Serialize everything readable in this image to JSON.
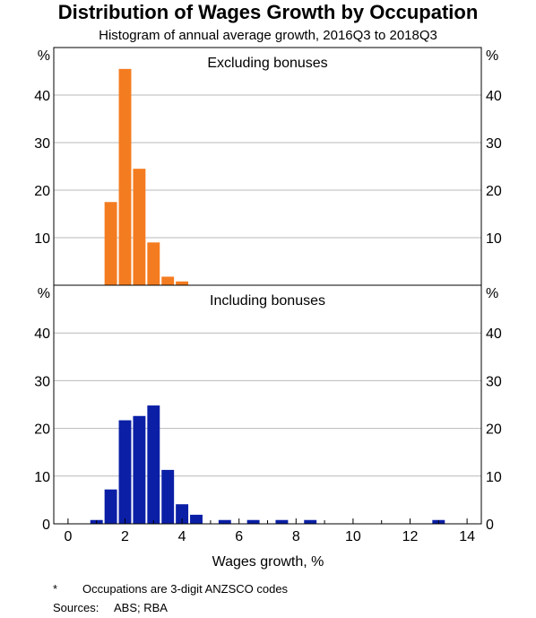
{
  "title": "Distribution of Wages Growth by Occupation",
  "subtitle": "Histogram of annual average growth, 2016Q3 to 2018Q3",
  "chart_data": {
    "type": "bar",
    "title": "Distribution of Wages Growth by Occupation",
    "subtitle": "Histogram of annual average growth, 2016Q3 to 2018Q3",
    "xlabel": "Wages growth, %",
    "xlim": [
      -0.5,
      14.5
    ],
    "x_ticks": [
      "0",
      "2",
      "4",
      "6",
      "8",
      "10",
      "12",
      "14"
    ],
    "x_tick_values": [
      0,
      2,
      4,
      6,
      8,
      10,
      12,
      14
    ],
    "bin_width": 0.5,
    "panels": [
      {
        "name": "Excluding bonuses",
        "color": "#f47c20",
        "unit_left": "%",
        "unit_right": "%",
        "ylim": [
          0,
          50
        ],
        "y_ticks": [
          "10",
          "20",
          "30",
          "40"
        ],
        "y_tick_values": [
          10,
          20,
          30,
          40
        ],
        "x": [
          1.5,
          2.0,
          2.5,
          3.0,
          3.5,
          4.0
        ],
        "values": [
          17.5,
          45.5,
          24.5,
          9.0,
          1.8,
          0.8
        ]
      },
      {
        "name": "Including bonuses",
        "color": "#0b1fa6",
        "unit_left": "%",
        "unit_right": "%",
        "ylim": [
          0,
          50
        ],
        "y_ticks": [
          "0",
          "10",
          "20",
          "30",
          "40"
        ],
        "y_tick_values": [
          0,
          10,
          20,
          30,
          40
        ],
        "x": [
          1.0,
          1.5,
          2.0,
          2.5,
          3.0,
          3.5,
          4.0,
          4.5,
          5.5,
          6.5,
          7.5,
          8.5,
          13.0
        ],
        "values": [
          0.8,
          7.2,
          21.7,
          22.6,
          24.8,
          11.3,
          4.1,
          1.9,
          0.8,
          0.8,
          0.8,
          0.8,
          0.8
        ]
      }
    ]
  },
  "notes": {
    "star": "*",
    "star_text": "Occupations are 3-digit ANZSCO codes",
    "sources_label": "Sources:",
    "sources_text": "ABS; RBA"
  }
}
